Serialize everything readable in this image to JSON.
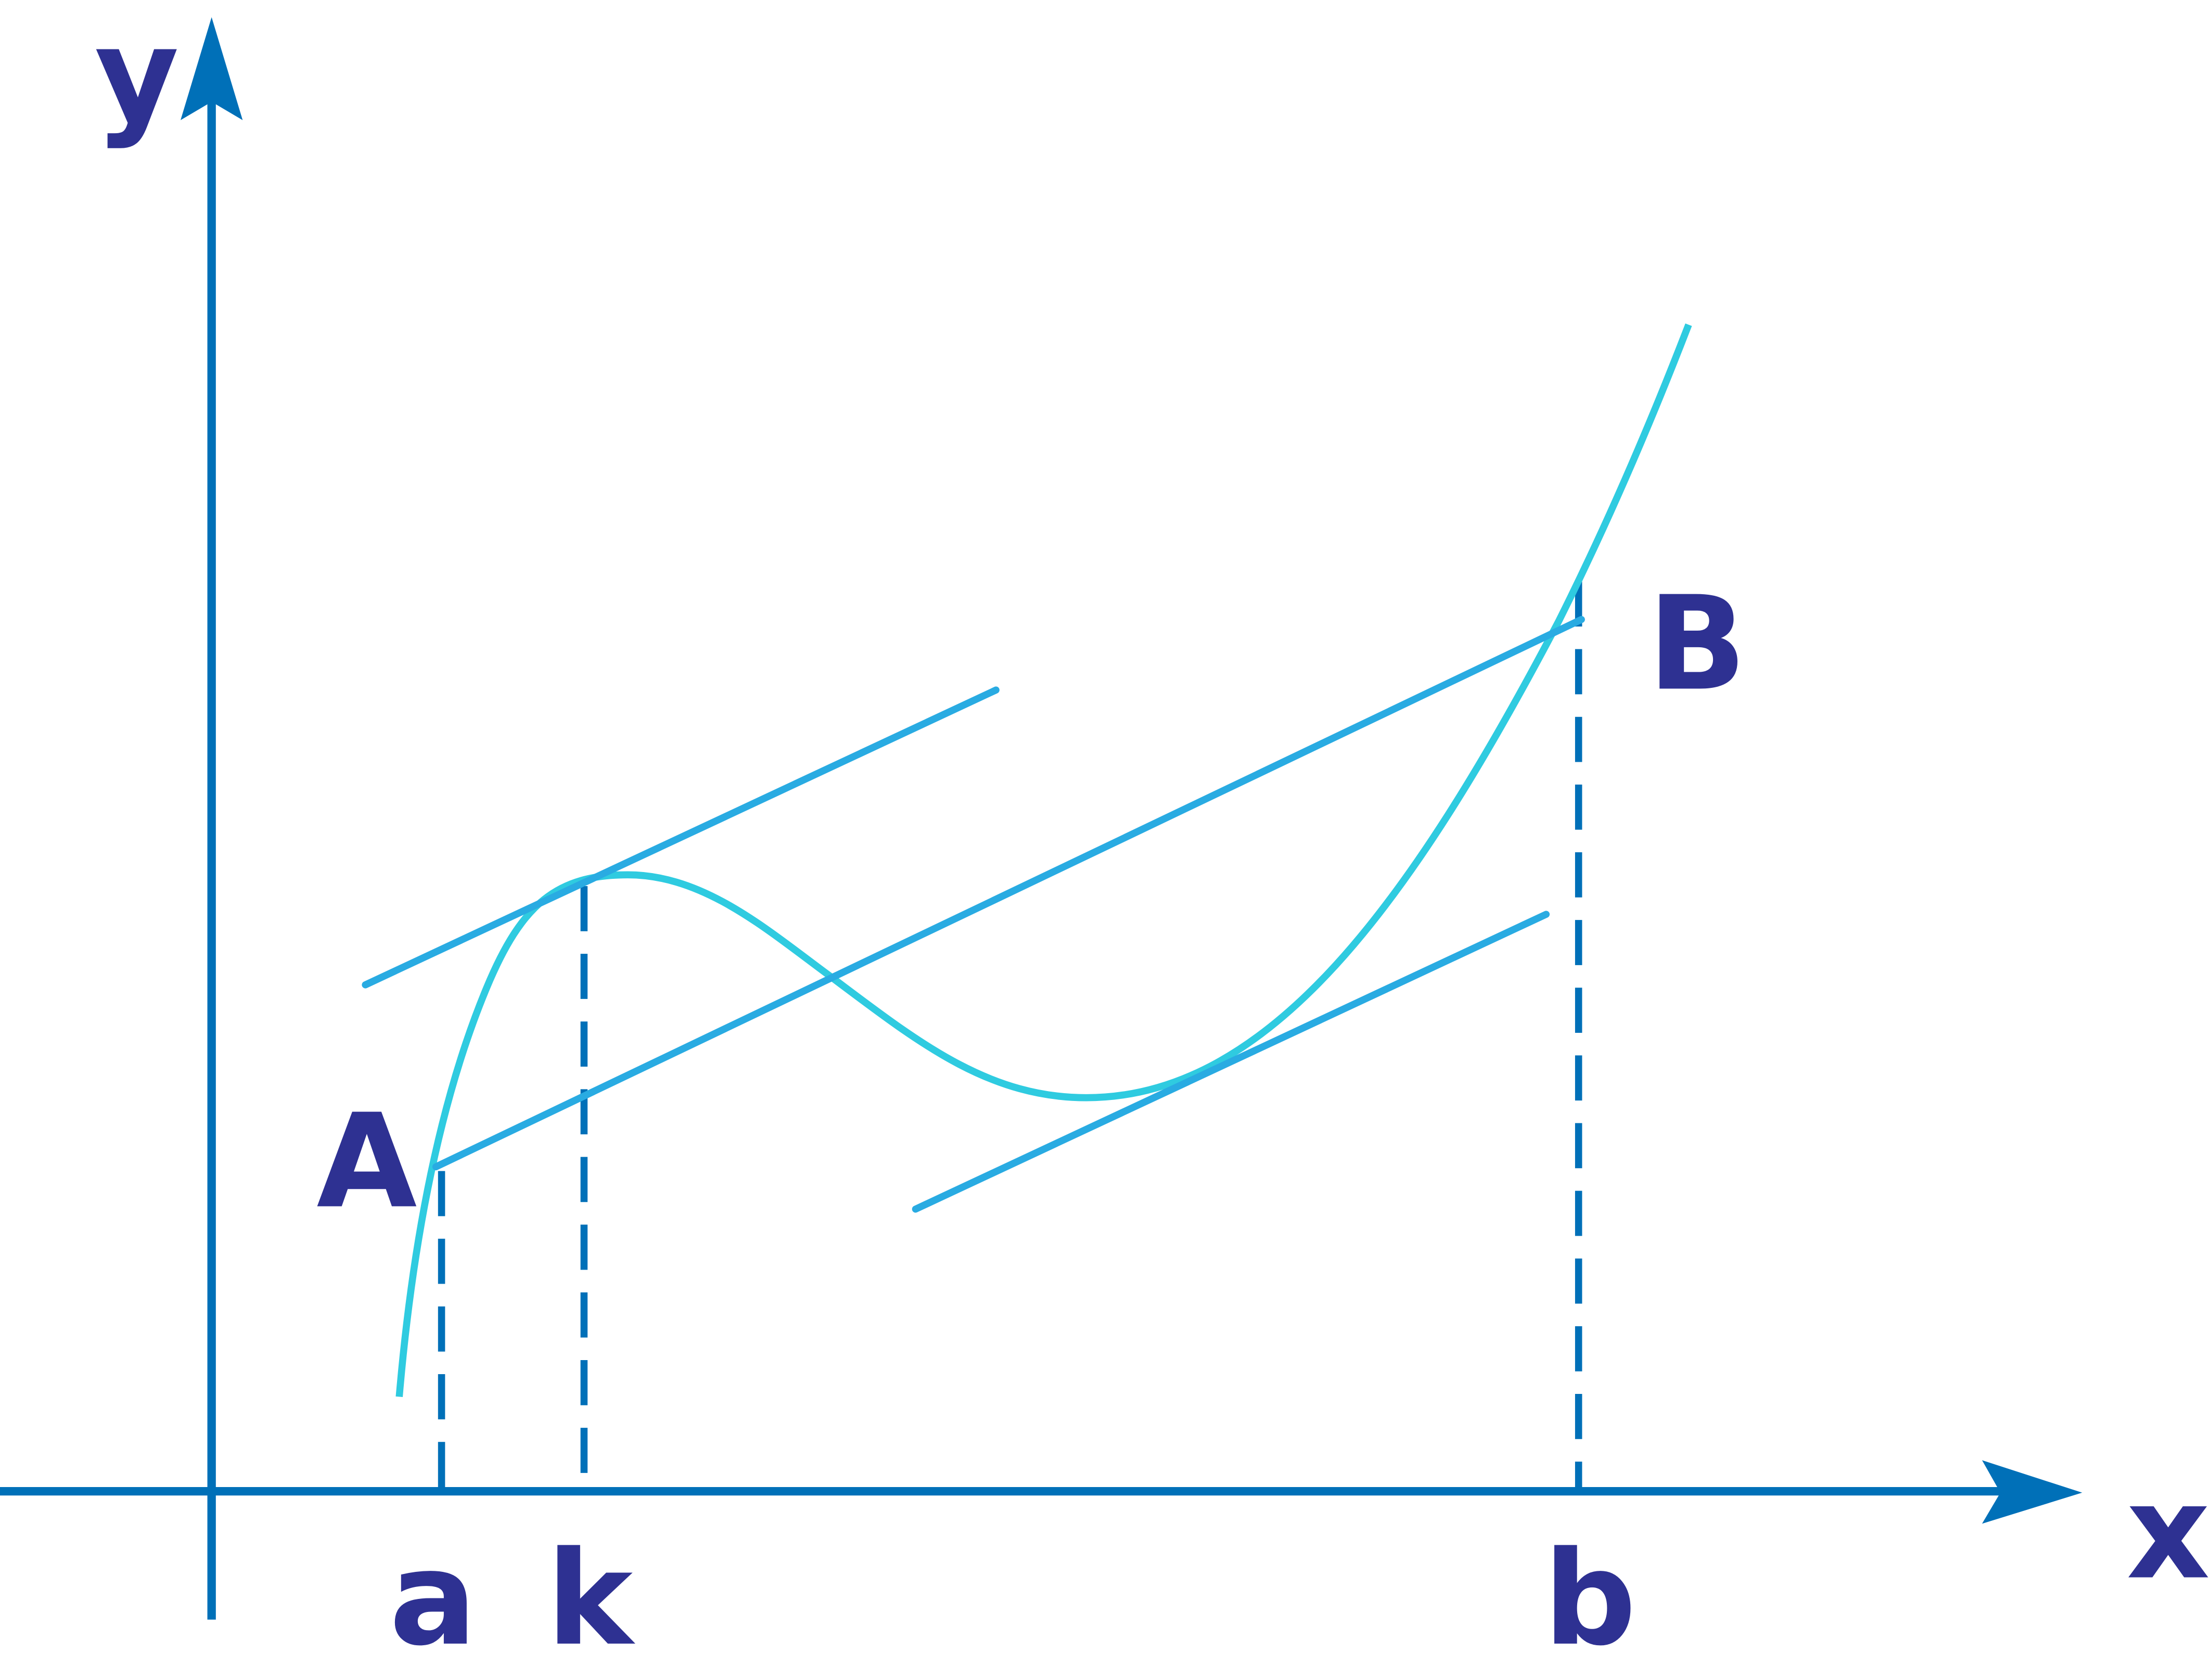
{
  "axes": {
    "y": "y",
    "x": "x"
  },
  "points": {
    "A": "A",
    "B": "B"
  },
  "x_marks": {
    "a": "a",
    "k": "k",
    "b": "b"
  }
}
